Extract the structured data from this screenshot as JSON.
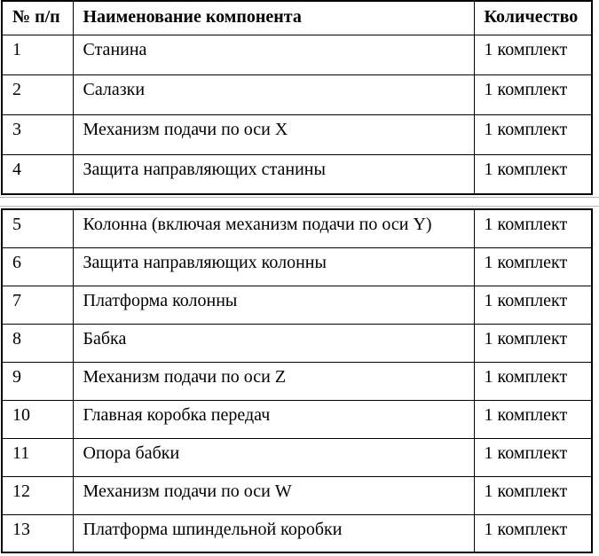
{
  "table": {
    "headers": [
      "№ п/п",
      "Наименование компонента",
      "Количество"
    ],
    "rows": [
      {
        "num": "1",
        "name": "Станина",
        "qty": "1 комплект"
      },
      {
        "num": "2",
        "name": "Салазки",
        "qty": "1 комплект"
      },
      {
        "num": "3",
        "name": "Механизм подачи по оси X",
        "qty": "1 комплект"
      },
      {
        "num": "4",
        "name": "Защита направляющих станины",
        "qty": "1 комплект"
      },
      {
        "num": "5",
        "name": "Колонна (включая механизм подачи по оси Y)",
        "qty": "1 комплект"
      },
      {
        "num": "6",
        "name": "Защита направляющих колонны",
        "qty": "1 комплект"
      },
      {
        "num": "7",
        "name": "Платформа колонны",
        "qty": "1 комплект"
      },
      {
        "num": "8",
        "name": "Бабка",
        "qty": "1 комплект"
      },
      {
        "num": "9",
        "name": "Механизм подачи по оси Z",
        "qty": "1 комплект"
      },
      {
        "num": "10",
        "name": "Главная коробка передач",
        "qty": "1 комплект"
      },
      {
        "num": "11",
        "name": "Опора бабки",
        "qty": "1 комплект"
      },
      {
        "num": "12",
        "name": "Механизм подачи по оси W",
        "qty": "1 комплект"
      },
      {
        "num": "13",
        "name": "Платформа шпиндельной коробки",
        "qty": "1 комплект"
      }
    ]
  },
  "colors": {
    "text": "#000000",
    "table_border": "#000000",
    "page_break_line": "#b7b7b7",
    "background": "#ffffff"
  }
}
